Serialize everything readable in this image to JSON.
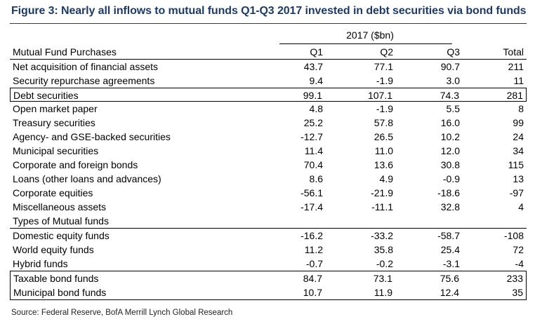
{
  "figure": {
    "title": "Figure 3: Nearly all inflows to mutual funds Q1-Q3 2017 invested in debt securities via bond funds",
    "period_label": "2017 ($bn)",
    "source": "Source: Federal Reserve, BofA Merrill Lynch Global Research"
  },
  "table": {
    "header": {
      "label": "Mutual Fund Purchases",
      "q1": "Q1",
      "q2": "Q2",
      "q3": "Q3",
      "total": "Total"
    },
    "rows": [
      {
        "label": "Net acquisition of financial assets",
        "q1": "43.7",
        "q2": "77.1",
        "q3": "90.7",
        "total": "211"
      },
      {
        "label": "Security repurchase agreements",
        "q1": "9.4",
        "q2": "-1.9",
        "q3": "3.0",
        "total": "11"
      },
      {
        "label": "Debt securities",
        "q1": "99.1",
        "q2": "107.1",
        "q3": "74.3",
        "total": "281"
      },
      {
        "label": "Open market paper",
        "q1": "4.8",
        "q2": "-1.9",
        "q3": "5.5",
        "total": "8"
      },
      {
        "label": "Treasury securities",
        "q1": "25.2",
        "q2": "57.8",
        "q3": "16.0",
        "total": "99"
      },
      {
        "label": "Agency- and GSE-backed securities",
        "q1": "-12.7",
        "q2": "26.5",
        "q3": "10.2",
        "total": "24"
      },
      {
        "label": "Municipal securities",
        "q1": "11.4",
        "q2": "11.0",
        "q3": "12.0",
        "total": "34"
      },
      {
        "label": "Corporate and foreign bonds",
        "q1": "70.4",
        "q2": "13.6",
        "q3": "30.8",
        "total": "115"
      },
      {
        "label": "Loans (other loans and advances)",
        "q1": "8.6",
        "q2": "4.9",
        "q3": "-0.9",
        "total": "13"
      },
      {
        "label": "Corporate equities",
        "q1": "-56.1",
        "q2": "-21.9",
        "q3": "-18.6",
        "total": "-97"
      },
      {
        "label": "Miscellaneous assets",
        "q1": "-17.4",
        "q2": "-11.1",
        "q3": "32.8",
        "total": "4"
      },
      {
        "label": "Types of Mutual funds",
        "q1": "",
        "q2": "",
        "q3": "",
        "total": ""
      },
      {
        "label": "Domestic equity funds",
        "q1": "-16.2",
        "q2": "-33.2",
        "q3": "-58.7",
        "total": "-108"
      },
      {
        "label": "World equity funds",
        "q1": "11.2",
        "q2": "35.8",
        "q3": "25.4",
        "total": "72"
      },
      {
        "label": "Hybrid funds",
        "q1": "-0.7",
        "q2": "-0.2",
        "q3": "-3.1",
        "total": "-4"
      },
      {
        "label": "Taxable bond funds",
        "q1": "84.7",
        "q2": "73.1",
        "q3": "75.6",
        "total": "233"
      },
      {
        "label": "Municipal bond funds",
        "q1": "10.7",
        "q2": "11.9",
        "q3": "12.4",
        "total": "35"
      }
    ]
  }
}
